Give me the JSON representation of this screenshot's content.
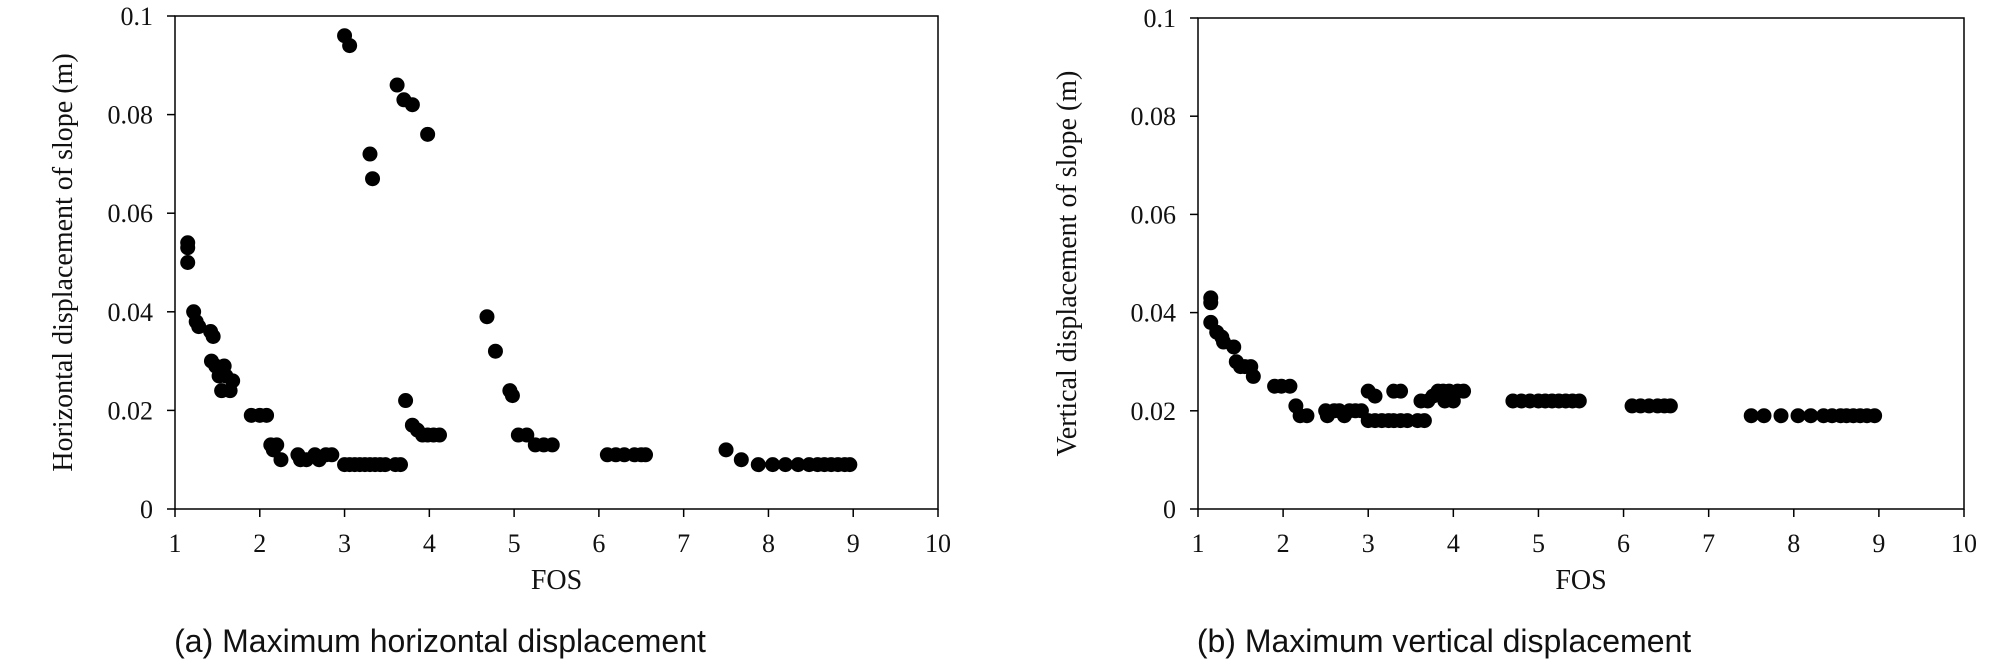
{
  "chart_data": [
    {
      "type": "scatter",
      "caption": "(a) Maximum horizontal displacement",
      "xlabel": "FOS",
      "ylabel": "Horizontal displacement of slope (m)",
      "xlim": [
        1,
        10
      ],
      "ylim": [
        0,
        0.1
      ],
      "xticks": [
        "1",
        "2",
        "3",
        "4",
        "5",
        "6",
        "7",
        "8",
        "9",
        "10"
      ],
      "yticks": [
        "0",
        "0.02",
        "0.04",
        "0.06",
        "0.08",
        "0.1"
      ],
      "grid": false,
      "color": "#000000",
      "points": [
        [
          1.15,
          0.054
        ],
        [
          1.15,
          0.053
        ],
        [
          1.15,
          0.05
        ],
        [
          1.22,
          0.04
        ],
        [
          1.25,
          0.038
        ],
        [
          1.28,
          0.037
        ],
        [
          1.42,
          0.036
        ],
        [
          1.45,
          0.035
        ],
        [
          1.43,
          0.03
        ],
        [
          1.48,
          0.029
        ],
        [
          1.52,
          0.027
        ],
        [
          1.55,
          0.024
        ],
        [
          1.58,
          0.029
        ],
        [
          1.6,
          0.027
        ],
        [
          1.65,
          0.024
        ],
        [
          1.68,
          0.026
        ],
        [
          1.9,
          0.019
        ],
        [
          2.0,
          0.019
        ],
        [
          2.08,
          0.019
        ],
        [
          2.13,
          0.013
        ],
        [
          2.16,
          0.012
        ],
        [
          2.2,
          0.013
        ],
        [
          2.25,
          0.01
        ],
        [
          2.45,
          0.011
        ],
        [
          2.48,
          0.01
        ],
        [
          2.55,
          0.01
        ],
        [
          2.65,
          0.011
        ],
        [
          2.7,
          0.01
        ],
        [
          2.78,
          0.011
        ],
        [
          2.85,
          0.011
        ],
        [
          3.0,
          0.096
        ],
        [
          3.06,
          0.094
        ],
        [
          3.0,
          0.009
        ],
        [
          3.06,
          0.009
        ],
        [
          3.12,
          0.009
        ],
        [
          3.18,
          0.009
        ],
        [
          3.24,
          0.009
        ],
        [
          3.3,
          0.009
        ],
        [
          3.36,
          0.009
        ],
        [
          3.42,
          0.009
        ],
        [
          3.48,
          0.009
        ],
        [
          3.6,
          0.009
        ],
        [
          3.66,
          0.009
        ],
        [
          3.3,
          0.072
        ],
        [
          3.33,
          0.067
        ],
        [
          3.62,
          0.086
        ],
        [
          3.7,
          0.083
        ],
        [
          3.8,
          0.082
        ],
        [
          3.98,
          0.076
        ],
        [
          3.72,
          0.022
        ],
        [
          3.8,
          0.017
        ],
        [
          3.86,
          0.016
        ],
        [
          3.92,
          0.015
        ],
        [
          3.98,
          0.015
        ],
        [
          4.05,
          0.015
        ],
        [
          4.12,
          0.015
        ],
        [
          4.68,
          0.039
        ],
        [
          4.78,
          0.032
        ],
        [
          4.95,
          0.024
        ],
        [
          4.98,
          0.023
        ],
        [
          5.05,
          0.015
        ],
        [
          5.15,
          0.015
        ],
        [
          5.25,
          0.013
        ],
        [
          5.35,
          0.013
        ],
        [
          5.45,
          0.013
        ],
        [
          6.1,
          0.011
        ],
        [
          6.2,
          0.011
        ],
        [
          6.3,
          0.011
        ],
        [
          6.42,
          0.011
        ],
        [
          6.5,
          0.011
        ],
        [
          6.55,
          0.011
        ],
        [
          7.5,
          0.012
        ],
        [
          7.68,
          0.01
        ],
        [
          7.88,
          0.009
        ],
        [
          8.05,
          0.009
        ],
        [
          8.2,
          0.009
        ],
        [
          8.35,
          0.009
        ],
        [
          8.48,
          0.009
        ],
        [
          8.58,
          0.009
        ],
        [
          8.66,
          0.009
        ],
        [
          8.74,
          0.009
        ],
        [
          8.82,
          0.009
        ],
        [
          8.9,
          0.009
        ],
        [
          8.96,
          0.009
        ]
      ]
    },
    {
      "type": "scatter",
      "caption": "(b) Maximum vertical displacement",
      "xlabel": "FOS",
      "ylabel": "Vertical displacement of slope (m)",
      "xlim": [
        1,
        10
      ],
      "ylim": [
        0,
        0.1
      ],
      "xticks": [
        "1",
        "2",
        "3",
        "4",
        "5",
        "6",
        "7",
        "8",
        "9",
        "10"
      ],
      "yticks": [
        "0",
        "0.02",
        "0.04",
        "0.06",
        "0.08",
        "0.1"
      ],
      "grid": false,
      "color": "#000000",
      "points": [
        [
          1.15,
          0.043
        ],
        [
          1.15,
          0.042
        ],
        [
          1.15,
          0.038
        ],
        [
          1.22,
          0.036
        ],
        [
          1.28,
          0.035
        ],
        [
          1.3,
          0.034
        ],
        [
          1.42,
          0.033
        ],
        [
          1.45,
          0.03
        ],
        [
          1.5,
          0.029
        ],
        [
          1.55,
          0.029
        ],
        [
          1.62,
          0.029
        ],
        [
          1.65,
          0.027
        ],
        [
          1.9,
          0.025
        ],
        [
          1.98,
          0.025
        ],
        [
          2.08,
          0.025
        ],
        [
          2.15,
          0.021
        ],
        [
          2.2,
          0.019
        ],
        [
          2.28,
          0.019
        ],
        [
          2.5,
          0.02
        ],
        [
          2.52,
          0.019
        ],
        [
          2.6,
          0.02
        ],
        [
          2.66,
          0.02
        ],
        [
          2.72,
          0.019
        ],
        [
          2.78,
          0.02
        ],
        [
          2.85,
          0.02
        ],
        [
          2.92,
          0.02
        ],
        [
          3.0,
          0.024
        ],
        [
          3.08,
          0.023
        ],
        [
          3.0,
          0.018
        ],
        [
          3.08,
          0.018
        ],
        [
          3.16,
          0.018
        ],
        [
          3.24,
          0.018
        ],
        [
          3.3,
          0.018
        ],
        [
          3.38,
          0.018
        ],
        [
          3.46,
          0.018
        ],
        [
          3.58,
          0.018
        ],
        [
          3.66,
          0.018
        ],
        [
          3.3,
          0.024
        ],
        [
          3.38,
          0.024
        ],
        [
          3.62,
          0.022
        ],
        [
          3.7,
          0.022
        ],
        [
          3.76,
          0.023
        ],
        [
          3.82,
          0.024
        ],
        [
          3.88,
          0.024
        ],
        [
          3.95,
          0.024
        ],
        [
          3.9,
          0.022
        ],
        [
          4.0,
          0.022
        ],
        [
          4.05,
          0.024
        ],
        [
          4.12,
          0.024
        ],
        [
          4.7,
          0.022
        ],
        [
          4.8,
          0.022
        ],
        [
          4.9,
          0.022
        ],
        [
          5.0,
          0.022
        ],
        [
          5.08,
          0.022
        ],
        [
          5.16,
          0.022
        ],
        [
          5.24,
          0.022
        ],
        [
          5.32,
          0.022
        ],
        [
          5.4,
          0.022
        ],
        [
          5.48,
          0.022
        ],
        [
          6.1,
          0.021
        ],
        [
          6.2,
          0.021
        ],
        [
          6.3,
          0.021
        ],
        [
          6.4,
          0.021
        ],
        [
          6.48,
          0.021
        ],
        [
          6.55,
          0.021
        ],
        [
          7.5,
          0.019
        ],
        [
          7.65,
          0.019
        ],
        [
          7.85,
          0.019
        ],
        [
          8.05,
          0.019
        ],
        [
          8.2,
          0.019
        ],
        [
          8.35,
          0.019
        ],
        [
          8.45,
          0.019
        ],
        [
          8.55,
          0.019
        ],
        [
          8.62,
          0.019
        ],
        [
          8.7,
          0.019
        ],
        [
          8.78,
          0.019
        ],
        [
          8.86,
          0.019
        ],
        [
          8.95,
          0.019
        ]
      ]
    }
  ]
}
